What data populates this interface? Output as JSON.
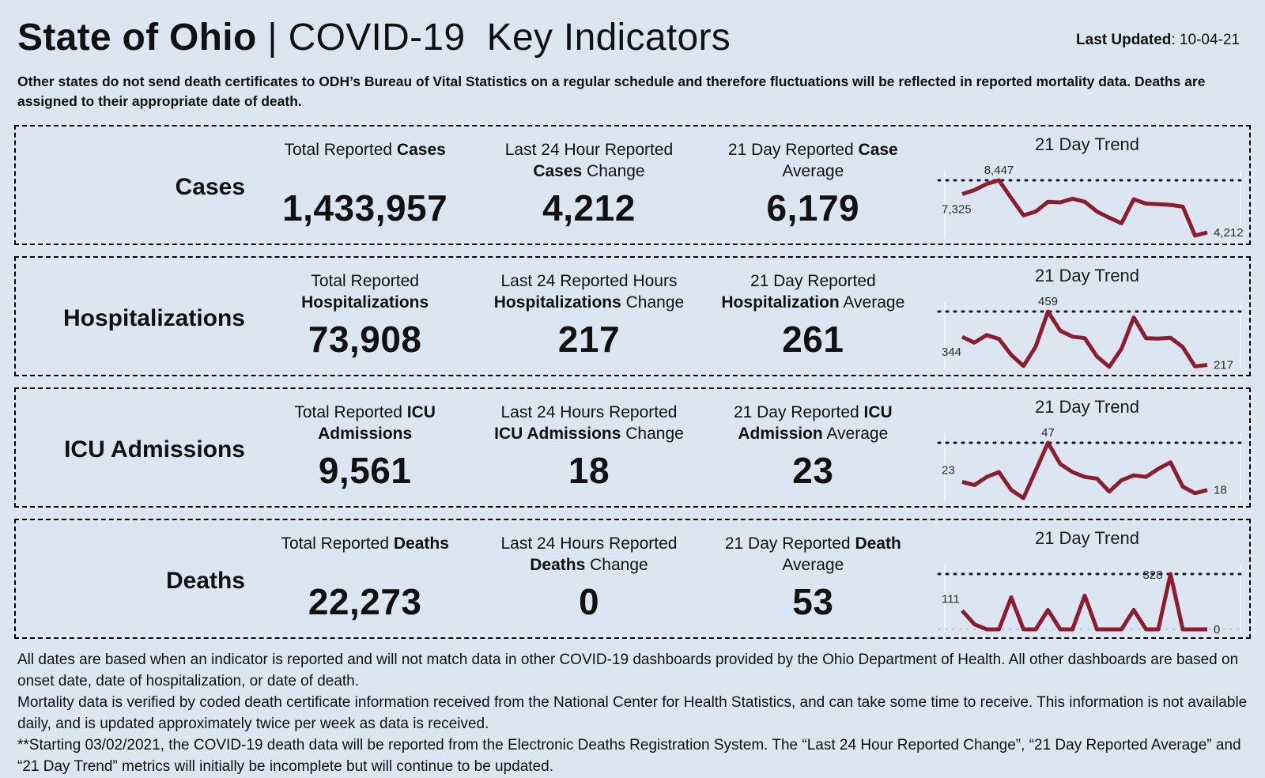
{
  "header": {
    "title_bold": "State of Ohio",
    "title_sep": " | ",
    "title_rest": "COVID-19  Key Indicators",
    "last_updated_label": "Last Updated",
    "last_updated_value": ": 10-04-21"
  },
  "note": "Other states do not send death certificates to ODH’s Bureau of Vital Statistics on a regular schedule and therefore fluctuations will be reflected in reported mortality data. Deaths are assigned to their appropriate date of death.",
  "trend_title": "21 Day Trend",
  "colors": {
    "background": "#dbe6f2",
    "line": "#8c1c2e",
    "dotted": "#15152b",
    "axis": "#eef4fb",
    "baseline_dotted": "#b9c6d8"
  },
  "rows": [
    {
      "id": "cases",
      "label": "Cases",
      "stats": [
        {
          "title": [
            {
              "t": "Total Reported ",
              "b": false
            },
            {
              "t": "Cases",
              "b": true
            }
          ],
          "value": "1,433,957"
        },
        {
          "title": [
            {
              "t": "Last 24 Hour Reported\n",
              "b": false
            },
            {
              "t": "Cases",
              "b": true
            },
            {
              "t": " Change",
              "b": false
            }
          ],
          "value": "4,212"
        },
        {
          "title": [
            {
              "t": "21 Day Reported ",
              "b": false
            },
            {
              "t": "Case",
              "b": true
            },
            {
              "t": "\nAverage",
              "b": false
            }
          ],
          "value": "6,179"
        }
      ]
    },
    {
      "id": "hospitalizations",
      "label": "Hospitalizations",
      "stats": [
        {
          "title": [
            {
              "t": "Total Reported\n",
              "b": false
            },
            {
              "t": "Hospitalizations",
              "b": true
            }
          ],
          "value": "73,908"
        },
        {
          "title": [
            {
              "t": "Last 24 Reported Hours\n",
              "b": false
            },
            {
              "t": "Hospitalizations",
              "b": true
            },
            {
              "t": " Change",
              "b": false
            }
          ],
          "value": "217"
        },
        {
          "title": [
            {
              "t": "21 Day Reported\n",
              "b": false
            },
            {
              "t": "Hospitalization",
              "b": true
            },
            {
              "t": " Average",
              "b": false
            }
          ],
          "value": "261"
        }
      ]
    },
    {
      "id": "icu-admissions",
      "label": "ICU Admissions",
      "stats": [
        {
          "title": [
            {
              "t": "Total Reported ",
              "b": false
            },
            {
              "t": "ICU",
              "b": true
            },
            {
              "t": "\n",
              "b": false
            },
            {
              "t": "Admissions",
              "b": true
            }
          ],
          "value": "9,561"
        },
        {
          "title": [
            {
              "t": "Last 24 Hours Reported\n",
              "b": false
            },
            {
              "t": "ICU Admissions",
              "b": true
            },
            {
              "t": " Change",
              "b": false
            }
          ],
          "value": "18"
        },
        {
          "title": [
            {
              "t": "21 Day Reported ",
              "b": false
            },
            {
              "t": "ICU",
              "b": true
            },
            {
              "t": "\n",
              "b": false
            },
            {
              "t": "Admission",
              "b": true
            },
            {
              "t": " Average",
              "b": false
            }
          ],
          "value": "23"
        }
      ]
    },
    {
      "id": "deaths",
      "label": "Deaths",
      "stats": [
        {
          "title": [
            {
              "t": "Total Reported ",
              "b": false
            },
            {
              "t": "Deaths",
              "b": true
            }
          ],
          "value": "22,273"
        },
        {
          "title": [
            {
              "t": "Last 24 Hours Reported\n",
              "b": false
            },
            {
              "t": "Deaths",
              "b": true
            },
            {
              "t": " Change",
              "b": false
            }
          ],
          "value": "0"
        },
        {
          "title": [
            {
              "t": "21 Day Reported ",
              "b": false
            },
            {
              "t": "Death",
              "b": true
            },
            {
              "t": "\nAverage",
              "b": false
            }
          ],
          "value": "53"
        }
      ]
    }
  ],
  "chart_data": [
    {
      "type": "line",
      "name": "cases-21-day-trend",
      "title": "21 Day Trend",
      "values": [
        7325,
        7650,
        8150,
        8447,
        7000,
        5600,
        5900,
        6700,
        6650,
        6950,
        6700,
        5900,
        5400,
        4950,
        6900,
        6550,
        6500,
        6450,
        6300,
        3950,
        4212
      ],
      "peak_index": 3,
      "annotations": {
        "start": "7,325",
        "peak": "8,447",
        "end": "4,212"
      },
      "ylim": [
        3950,
        8447
      ],
      "zero_baseline": false
    },
    {
      "type": "line",
      "name": "hospitalizations-21-day-trend",
      "title": "21 Day Trend",
      "values": [
        344,
        318,
        352,
        335,
        262,
        212,
        300,
        459,
        372,
        345,
        338,
        255,
        208,
        290,
        432,
        338,
        336,
        340,
        298,
        210,
        217
      ],
      "peak_index": 7,
      "annotations": {
        "start": "344",
        "peak": "459",
        "end": "217"
      },
      "ylim": [
        208,
        459
      ],
      "zero_baseline": false
    },
    {
      "type": "line",
      "name": "icu-admissions-21-day-trend",
      "title": "21 Day Trend",
      "values": [
        23,
        21,
        26,
        29,
        18,
        13,
        30,
        47,
        34,
        29,
        26,
        25,
        17,
        24,
        27,
        26,
        31,
        35,
        20,
        16,
        18
      ],
      "peak_index": 7,
      "annotations": {
        "start": "23",
        "peak": "47",
        "end": "18"
      },
      "ylim": [
        13,
        47
      ],
      "zero_baseline": false
    },
    {
      "type": "line",
      "name": "deaths-21-day-trend",
      "title": "21 Day Trend",
      "values": [
        111,
        30,
        0,
        0,
        190,
        0,
        0,
        115,
        0,
        0,
        200,
        0,
        0,
        0,
        115,
        0,
        0,
        328,
        0,
        0,
        0
      ],
      "peak_index": 17,
      "annotations": {
        "start": "111",
        "peak": "328",
        "end": "0"
      },
      "ylim": [
        0,
        328
      ],
      "zero_baseline": true
    }
  ],
  "footer": [
    "All dates are based when an indicator is reported and will not match data in other COVID-19 dashboards provided by the Ohio Department of Health. All other dashboards are based on onset date, date of hospitalization, or date of death.",
    "Mortality data is verified by coded death certificate information received from the National Center for Health Statistics, and can take some time to receive. This information is not available daily, and is updated approximately twice per week as data is received.",
    "**Starting 03/02/2021, the COVID-19 death data will be reported from the Electronic Deaths Registration System. The “Last 24 Hour Reported Change”, “21 Day Reported Average” and “21 Day Trend” metrics will initially be incomplete but will continue to be updated."
  ]
}
